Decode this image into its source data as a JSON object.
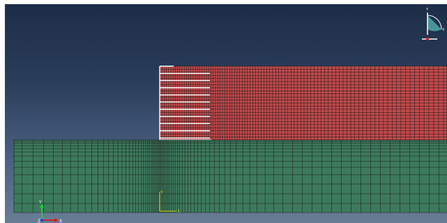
{
  "viewport": {
    "name": "model-viewport",
    "background_top": "#1c2d47",
    "background_bottom": "#6a7d95"
  },
  "mesh": {
    "upper_part_color": "#c0494b",
    "lower_part_color": "#3d7a5c",
    "grid_line_color": "#1a1a1a",
    "highlight_color": "#ffffff"
  },
  "global_triad": {
    "x_label": "X",
    "y_label": "Y",
    "z_label": "Z"
  },
  "local_csys": {
    "x_label": "X",
    "y_label": "Y"
  },
  "view_cube": {
    "y_label": "Y",
    "x_label": "X"
  }
}
